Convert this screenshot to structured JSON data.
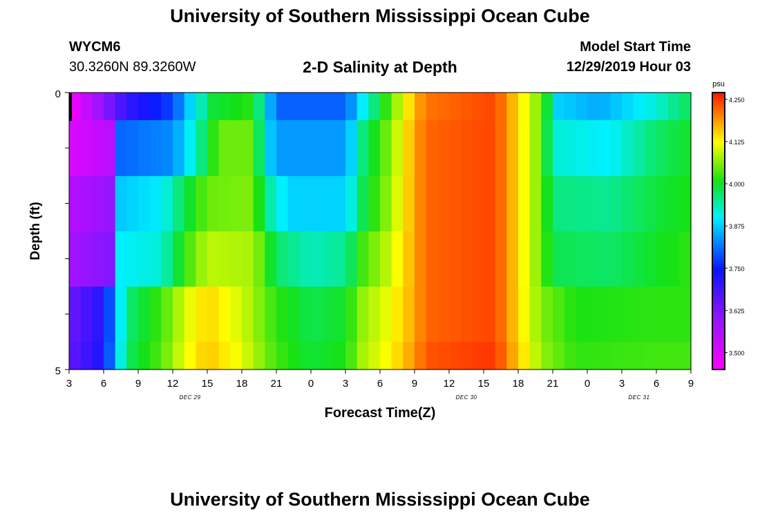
{
  "header": {
    "title": "University of Southern Mississippi Ocean Cube",
    "station": "WYCM6",
    "coords": "30.3260N 89.3260W",
    "subtitle": "2-D Salinity at Depth",
    "model_start_label": "Model Start Time",
    "model_start_value": "12/29/2019 Hour 03"
  },
  "footer": {
    "title": "University of Southern Mississippi Ocean Cube"
  },
  "chart_data": {
    "type": "heatmap",
    "title": "2-D Salinity at Depth",
    "xlabel": "Forecast Time(Z)",
    "ylabel": "Depth (ft)",
    "ylim": [
      0,
      5
    ],
    "y_ticks": [
      "0",
      "5"
    ],
    "x_ticks": [
      "3",
      "6",
      "9",
      "12",
      "15",
      "18",
      "21",
      "0",
      "3",
      "6",
      "9",
      "12",
      "15",
      "18",
      "21",
      "0",
      "3",
      "6",
      "9"
    ],
    "day_labels": [
      {
        "text": "DEC 29",
        "at_tick": 3.5
      },
      {
        "text": "DEC 30",
        "at_tick": 11.5
      },
      {
        "text": "DEC 31",
        "at_tick": 16.5
      }
    ],
    "hours": [
      0,
      54
    ],
    "rows": 5,
    "colorbar": {
      "unit": "psu",
      "min": 3.45,
      "max": 4.27,
      "ticks": [
        "3.500",
        "3.625",
        "3.750",
        "3.875",
        "4.000",
        "4.125",
        "4.250"
      ],
      "tick_values": [
        3.5,
        3.625,
        3.75,
        3.875,
        4.0,
        4.125,
        4.25
      ]
    },
    "row_keys": {
      "r0": [
        [
          0,
          3.46
        ],
        [
          5,
          3.7
        ],
        [
          9,
          3.78
        ],
        [
          10.5,
          3.88
        ],
        [
          12.5,
          3.99
        ],
        [
          16,
          4.02
        ],
        [
          17,
          3.9
        ],
        [
          18,
          3.8
        ],
        [
          24,
          3.8
        ],
        [
          25.5,
          3.9
        ],
        [
          28,
          4.05
        ],
        [
          30,
          4.17
        ],
        [
          31,
          4.21
        ],
        [
          37,
          4.24
        ],
        [
          38.5,
          4.17
        ],
        [
          41,
          4.05
        ],
        [
          42.5,
          3.88
        ],
        [
          46,
          3.85
        ],
        [
          51,
          3.92
        ],
        [
          54,
          3.98
        ]
      ],
      "r1": [
        [
          0,
          3.5
        ],
        [
          3.8,
          3.55
        ],
        [
          4,
          3.8
        ],
        [
          9,
          3.83
        ],
        [
          11,
          3.93
        ],
        [
          13,
          4.05
        ],
        [
          16,
          4.05
        ],
        [
          17,
          3.9
        ],
        [
          18,
          3.84
        ],
        [
          24,
          3.84
        ],
        [
          25.5,
          3.96
        ],
        [
          28,
          4.07
        ],
        [
          30,
          4.18
        ],
        [
          31,
          4.22
        ],
        [
          37,
          4.24
        ],
        [
          38.5,
          4.17
        ],
        [
          41,
          4.05
        ],
        [
          42,
          3.92
        ],
        [
          47,
          3.9
        ],
        [
          51,
          3.97
        ],
        [
          54,
          4.0
        ]
      ],
      "r2": [
        [
          0,
          3.55
        ],
        [
          3.8,
          3.6
        ],
        [
          4,
          3.87
        ],
        [
          8,
          3.9
        ],
        [
          10,
          3.98
        ],
        [
          12,
          4.05
        ],
        [
          16,
          4.06
        ],
        [
          17,
          3.96
        ],
        [
          19,
          3.88
        ],
        [
          24,
          3.88
        ],
        [
          25.5,
          3.98
        ],
        [
          28,
          4.08
        ],
        [
          30,
          4.18
        ],
        [
          31,
          4.22
        ],
        [
          37,
          4.24
        ],
        [
          38.5,
          4.17
        ],
        [
          41,
          4.05
        ],
        [
          42,
          3.96
        ],
        [
          47,
          3.95
        ],
        [
          51,
          3.99
        ],
        [
          54,
          4.01
        ]
      ],
      "r3": [
        [
          0,
          3.58
        ],
        [
          4,
          3.62
        ],
        [
          4.3,
          3.9
        ],
        [
          8,
          3.92
        ],
        [
          10,
          4.02
        ],
        [
          12,
          4.09
        ],
        [
          16,
          4.08
        ],
        [
          18,
          3.97
        ],
        [
          21,
          3.93
        ],
        [
          24,
          3.95
        ],
        [
          25.5,
          4.03
        ],
        [
          28,
          4.1
        ],
        [
          30,
          4.18
        ],
        [
          31,
          4.22
        ],
        [
          37,
          4.24
        ],
        [
          38.5,
          4.17
        ],
        [
          41,
          4.05
        ],
        [
          42,
          3.98
        ],
        [
          47,
          3.97
        ],
        [
          51,
          4.0
        ],
        [
          54,
          4.02
        ]
      ],
      "r4": [
        [
          0,
          3.64
        ],
        [
          3,
          3.72
        ],
        [
          4,
          3.85
        ],
        [
          5,
          3.96
        ],
        [
          8,
          4.03
        ],
        [
          10,
          4.1
        ],
        [
          12,
          4.15
        ],
        [
          15,
          4.1
        ],
        [
          18,
          4.02
        ],
        [
          21,
          3.98
        ],
        [
          24,
          4.0
        ],
        [
          25.5,
          4.07
        ],
        [
          28,
          4.12
        ],
        [
          30,
          4.18
        ],
        [
          31,
          4.22
        ],
        [
          37,
          4.24
        ],
        [
          38.5,
          4.17
        ],
        [
          41,
          4.06
        ],
        [
          44,
          4.01
        ],
        [
          51,
          4.02
        ],
        [
          54,
          4.02
        ]
      ]
    }
  }
}
